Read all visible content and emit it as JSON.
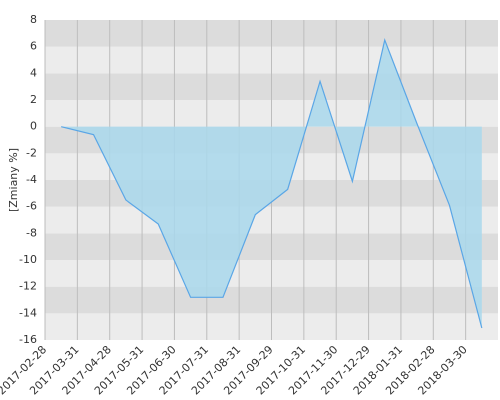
{
  "chart_data": {
    "type": "area",
    "y_label": "[Zmiany %]",
    "categories": [
      "2017-02-28",
      "2017-03-31",
      "2017-04-28",
      "2017-05-31",
      "2017-06-30",
      "2017-07-31",
      "2017-08-31",
      "2017-09-29",
      "2017-10-31",
      "2017-11-30",
      "2017-12-29",
      "2018-01-31",
      "2018-02-28",
      "2018-03-30"
    ],
    "values": [
      0,
      -0.6,
      -5.5,
      -7.3,
      -12.8,
      -12.8,
      -6.6,
      -4.7,
      3.4,
      -4.1,
      6.5,
      0.2,
      -5.9,
      -15.1
    ],
    "color": "#5aa6e6",
    "fill": "#a9d8ec",
    "ylim": [
      -16,
      8
    ],
    "yticks": [
      -16,
      -14,
      -12,
      -10,
      -8,
      -6,
      -4,
      -2,
      0,
      2,
      4,
      6,
      8
    ],
    "grid": true
  }
}
